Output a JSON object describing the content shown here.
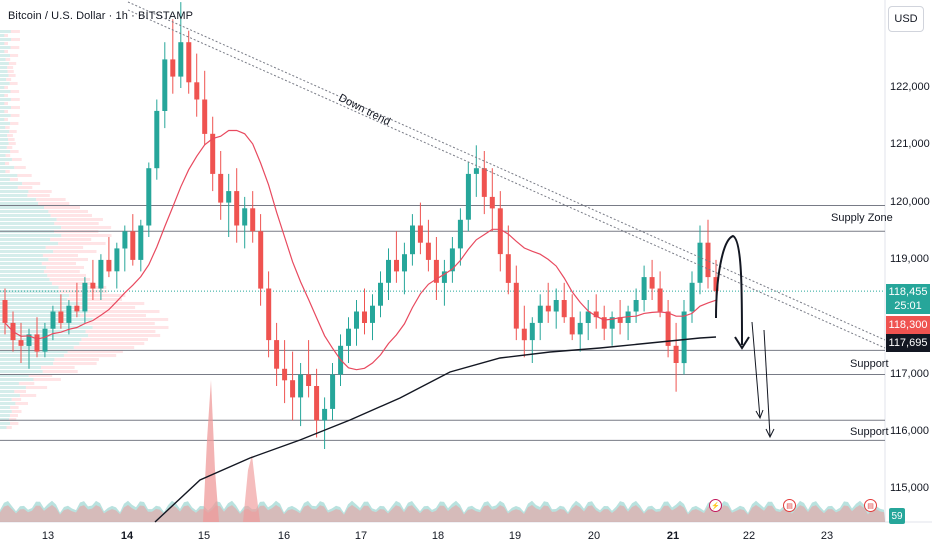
{
  "header": {
    "title": "Bitcoin / U.S. Dollar · 1h · BITSTAMP"
  },
  "currency_button": "USD",
  "colors": {
    "up": "#26a69a",
    "down": "#ef5350",
    "ma_red": "#e84a5f",
    "ma_black": "#131722",
    "trend": "#787b86"
  },
  "price_axis": [
    {
      "value": 122000,
      "label": "122,000"
    },
    {
      "value": 121000,
      "label": "121,000"
    },
    {
      "value": 120000,
      "label": "120,000"
    },
    {
      "value": 119000,
      "label": "119,000"
    },
    {
      "value": 117000,
      "label": "117,000"
    },
    {
      "value": 116000,
      "label": "116,000"
    },
    {
      "value": 115000,
      "label": "115,000"
    }
  ],
  "time_axis": [
    {
      "label": "13",
      "bold": false
    },
    {
      "label": "14",
      "bold": true
    },
    {
      "label": "15",
      "bold": false
    },
    {
      "label": "16",
      "bold": false
    },
    {
      "label": "17",
      "bold": false
    },
    {
      "label": "18",
      "bold": false
    },
    {
      "label": "19",
      "bold": false
    },
    {
      "label": "20",
      "bold": false
    },
    {
      "label": "21",
      "bold": true
    },
    {
      "label": "22",
      "bold": false
    },
    {
      "label": "23",
      "bold": false
    }
  ],
  "price_badges": {
    "last_price": "118,455",
    "countdown": "25:01",
    "ma_fast": "118,300",
    "ma_slow": "117,695"
  },
  "volume_badge": "59",
  "annotations": {
    "trend_label": "Down trend",
    "supply_label": "Supply Zone",
    "support_1": "Support",
    "support_2": "Support"
  },
  "chart_data": {
    "type": "candlestick",
    "symbol": "Bitcoin / U.S. Dollar",
    "interval": "1h",
    "exchange": "BITSTAMP",
    "currency": "USD",
    "ylim": [
      114700,
      123600
    ],
    "x_labels": [
      "13",
      "14",
      "15",
      "16",
      "17",
      "18",
      "19",
      "20",
      "21",
      "22",
      "23"
    ],
    "last_price": 118455,
    "moving_averages": [
      {
        "color": "red",
        "last_value": 118300
      },
      {
        "color": "black",
        "last_value": 117695
      }
    ],
    "horizontal_levels": [
      {
        "label": "Supply Zone",
        "value": 119950
      },
      {
        "value": 119500
      },
      {
        "label": "Support",
        "value": 117420
      },
      {
        "value": 117000
      },
      {
        "label": "Support",
        "value": 116200
      },
      {
        "value": 115850
      }
    ],
    "trendline": {
      "label": "Down trend",
      "direction": "down"
    },
    "ohlc_series": [
      [
        118300,
        118500,
        117700,
        117900
      ],
      [
        117900,
        118100,
        117400,
        117600
      ],
      [
        117600,
        117900,
        117200,
        117500
      ],
      [
        117500,
        117800,
        117100,
        117700
      ],
      [
        117700,
        118000,
        117300,
        117400
      ],
      [
        117400,
        117900,
        117300,
        117800
      ],
      [
        117800,
        118200,
        117600,
        118100
      ],
      [
        118100,
        118400,
        117800,
        117900
      ],
      [
        117900,
        118300,
        117700,
        118200
      ],
      [
        118200,
        118600,
        118000,
        118100
      ],
      [
        118100,
        118700,
        117900,
        118600
      ],
      [
        118600,
        119000,
        118300,
        118500
      ],
      [
        118500,
        119100,
        118300,
        119000
      ],
      [
        119000,
        119400,
        118700,
        118800
      ],
      [
        118800,
        119300,
        118500,
        119200
      ],
      [
        119200,
        119600,
        118800,
        119500
      ],
      [
        119500,
        119800,
        118900,
        119000
      ],
      [
        119000,
        119700,
        118800,
        119600
      ],
      [
        119600,
        120700,
        119400,
        120600
      ],
      [
        120600,
        121800,
        120400,
        121600
      ],
      [
        121600,
        122800,
        121300,
        122500
      ],
      [
        122500,
        123200,
        121900,
        122200
      ],
      [
        122200,
        123500,
        122000,
        122800
      ],
      [
        122800,
        123000,
        121900,
        122100
      ],
      [
        122100,
        122600,
        121500,
        121800
      ],
      [
        121800,
        122300,
        121000,
        121200
      ],
      [
        121200,
        121500,
        120200,
        120500
      ],
      [
        120500,
        120900,
        119700,
        120000
      ],
      [
        120000,
        120500,
        119400,
        120200
      ],
      [
        120200,
        120600,
        119300,
        119600
      ],
      [
        119600,
        120100,
        119200,
        119900
      ],
      [
        119900,
        120200,
        119300,
        119500
      ],
      [
        119500,
        119800,
        118200,
        118500
      ],
      [
        118500,
        118800,
        117300,
        117600
      ],
      [
        117600,
        117900,
        116800,
        117100
      ],
      [
        117100,
        117600,
        116500,
        116900
      ],
      [
        116900,
        117400,
        116200,
        116600
      ],
      [
        116600,
        117200,
        116100,
        117000
      ],
      [
        117000,
        117600,
        116600,
        116800
      ],
      [
        116800,
        117100,
        115900,
        116200
      ],
      [
        116200,
        116600,
        115700,
        116400
      ],
      [
        116400,
        117200,
        116200,
        117000
      ],
      [
        117000,
        117700,
        116800,
        117500
      ],
      [
        117500,
        118000,
        117200,
        117800
      ],
      [
        117800,
        118300,
        117500,
        118100
      ],
      [
        118100,
        118500,
        117700,
        117900
      ],
      [
        117900,
        118400,
        117600,
        118200
      ],
      [
        118200,
        118800,
        118000,
        118600
      ],
      [
        118600,
        119200,
        118300,
        119000
      ],
      [
        119000,
        119500,
        118600,
        118800
      ],
      [
        118800,
        119300,
        118400,
        119100
      ],
      [
        119100,
        119800,
        118900,
        119600
      ],
      [
        119600,
        120000,
        119100,
        119300
      ],
      [
        119300,
        119700,
        118800,
        119000
      ],
      [
        119000,
        119400,
        118300,
        118600
      ],
      [
        118600,
        119000,
        118200,
        118800
      ],
      [
        118800,
        119400,
        118600,
        119200
      ],
      [
        119200,
        119900,
        118900,
        119700
      ],
      [
        119700,
        120700,
        119500,
        120500
      ],
      [
        120500,
        121000,
        120100,
        120600
      ],
      [
        120600,
        120900,
        119800,
        120100
      ],
      [
        120100,
        120600,
        119500,
        119900
      ],
      [
        119900,
        120200,
        118800,
        119100
      ],
      [
        119100,
        119600,
        118400,
        118600
      ],
      [
        118600,
        118900,
        117600,
        117800
      ],
      [
        117800,
        118200,
        117300,
        117600
      ],
      [
        117600,
        118000,
        117200,
        117900
      ],
      [
        117900,
        118400,
        117600,
        118200
      ],
      [
        118200,
        118600,
        117900,
        118100
      ],
      [
        118100,
        118500,
        117800,
        118300
      ],
      [
        118300,
        118600,
        117900,
        118000
      ],
      [
        118000,
        118400,
        117600,
        117700
      ],
      [
        117700,
        118100,
        117400,
        117900
      ],
      [
        117900,
        118300,
        117600,
        118100
      ],
      [
        118100,
        118400,
        117800,
        118000
      ],
      [
        118000,
        118200,
        117600,
        117800
      ],
      [
        117800,
        118100,
        117500,
        118000
      ],
      [
        118000,
        118300,
        117700,
        117900
      ],
      [
        117900,
        118200,
        117600,
        118100
      ],
      [
        118100,
        118500,
        117900,
        118300
      ],
      [
        118300,
        118900,
        118100,
        118700
      ],
      [
        118700,
        119000,
        118300,
        118500
      ],
      [
        118500,
        118800,
        118000,
        118100
      ],
      [
        118100,
        118300,
        117300,
        117500
      ],
      [
        117500,
        117900,
        116700,
        117200
      ],
      [
        117200,
        118300,
        117000,
        118100
      ],
      [
        118100,
        118800,
        117900,
        118600
      ],
      [
        118600,
        119600,
        118400,
        119300
      ],
      [
        119300,
        119700,
        118500,
        118700
      ],
      [
        118700,
        119000,
        118200,
        118455
      ]
    ]
  }
}
